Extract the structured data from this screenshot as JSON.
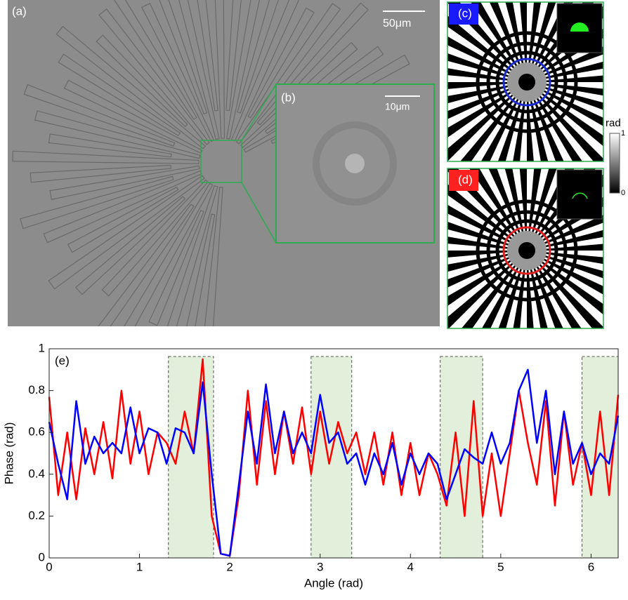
{
  "panels": {
    "a": {
      "label": "(a)",
      "scale": "50μm"
    },
    "b": {
      "label": "(b)",
      "scale": "10μm"
    },
    "c": {
      "label": "(c)"
    },
    "d": {
      "label": "(d)"
    },
    "colorbar": {
      "label": "rad",
      "ticks": [
        0,
        1
      ]
    }
  },
  "chart_data": {
    "type": "line",
    "panel_label": "(e)",
    "x_label": "Angle (rad)",
    "y_label": "Phase (rad)",
    "x": [
      0,
      0.1,
      0.2,
      0.3,
      0.4,
      0.5,
      0.6,
      0.7,
      0.8,
      0.9,
      1.0,
      1.1,
      1.2,
      1.3,
      1.4,
      1.5,
      1.6,
      1.7,
      1.8,
      1.9,
      2.0,
      2.1,
      2.2,
      2.3,
      2.4,
      2.5,
      2.6,
      2.7,
      2.8,
      2.9,
      3.0,
      3.1,
      3.2,
      3.3,
      3.4,
      3.5,
      3.6,
      3.7,
      3.8,
      3.9,
      4.0,
      4.1,
      4.2,
      4.3,
      4.4,
      4.5,
      4.6,
      4.7,
      4.8,
      4.9,
      5.0,
      5.1,
      5.2,
      5.3,
      5.4,
      5.5,
      5.6,
      5.7,
      5.8,
      5.9,
      6.0,
      6.1,
      6.2,
      6.3
    ],
    "series": [
      {
        "color": "#ff0000",
        "values": [
          0.77,
          0.3,
          0.6,
          0.28,
          0.62,
          0.4,
          0.65,
          0.38,
          0.8,
          0.45,
          0.7,
          0.4,
          0.6,
          0.55,
          0.45,
          0.7,
          0.5,
          0.95,
          0.2,
          0.02,
          0.01,
          0.3,
          0.8,
          0.35,
          0.75,
          0.4,
          0.7,
          0.45,
          0.72,
          0.4,
          0.7,
          0.45,
          0.65,
          0.5,
          0.6,
          0.4,
          0.6,
          0.35,
          0.6,
          0.3,
          0.55,
          0.3,
          0.5,
          0.4,
          0.25,
          0.6,
          0.2,
          0.75,
          0.2,
          0.5,
          0.2,
          0.5,
          0.8,
          0.55,
          0.35,
          0.75,
          0.25,
          0.7,
          0.35,
          0.55,
          0.3,
          0.7,
          0.3,
          0.78
        ]
      },
      {
        "color": "#0000ff",
        "values": [
          0.65,
          0.45,
          0.28,
          0.75,
          0.45,
          0.58,
          0.5,
          0.55,
          0.5,
          0.72,
          0.5,
          0.62,
          0.6,
          0.45,
          0.62,
          0.6,
          0.5,
          0.84,
          0.4,
          0.02,
          0.01,
          0.35,
          0.7,
          0.45,
          0.83,
          0.5,
          0.7,
          0.5,
          0.6,
          0.5,
          0.78,
          0.55,
          0.6,
          0.45,
          0.5,
          0.35,
          0.5,
          0.4,
          0.55,
          0.35,
          0.5,
          0.4,
          0.5,
          0.45,
          0.28,
          0.4,
          0.52,
          0.48,
          0.45,
          0.6,
          0.45,
          0.55,
          0.8,
          0.9,
          0.55,
          0.8,
          0.4,
          0.7,
          0.45,
          0.55,
          0.4,
          0.5,
          0.45,
          0.68
        ]
      }
    ],
    "shaded_ranges": [
      [
        1.32,
        1.82
      ],
      [
        2.9,
        3.35
      ],
      [
        4.33,
        4.8
      ],
      [
        5.9,
        6.3
      ]
    ],
    "xlim": [
      0,
      6.3
    ],
    "ylim": [
      0,
      1
    ],
    "xticks": [
      0,
      1,
      2,
      3,
      4,
      5,
      6
    ],
    "yticks": [
      0,
      0.2,
      0.4,
      0.6,
      0.8,
      1
    ]
  }
}
